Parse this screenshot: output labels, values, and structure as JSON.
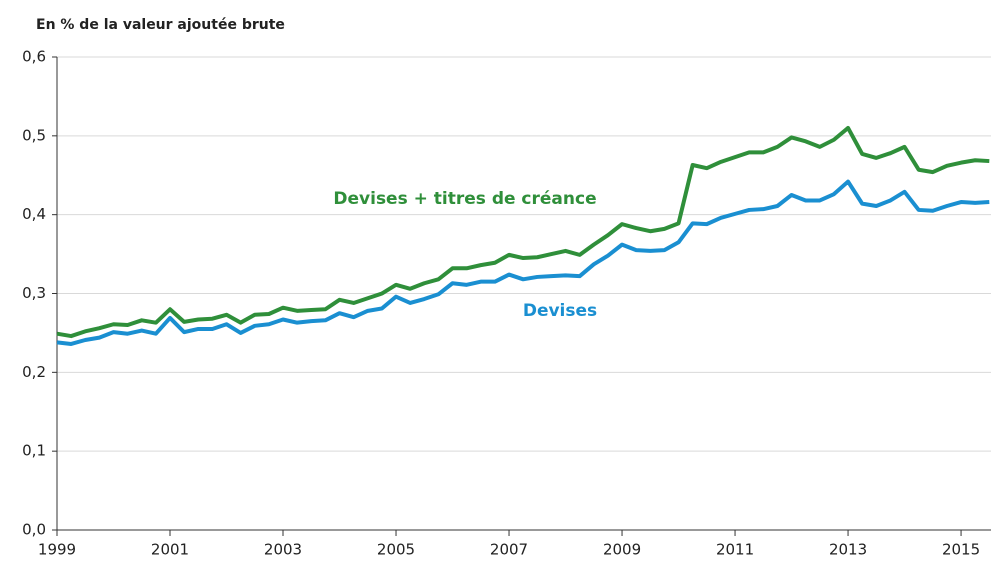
{
  "chart_data": {
    "type": "line",
    "y_label": "En % de la valeur ajoutée brute",
    "x": [
      1999,
      1999.25,
      1999.5,
      1999.75,
      2000,
      2000.25,
      2000.5,
      2000.75,
      2001,
      2001.25,
      2001.5,
      2001.75,
      2002,
      2002.25,
      2002.5,
      2002.75,
      2003,
      2003.25,
      2003.5,
      2003.75,
      2004,
      2004.25,
      2004.5,
      2004.75,
      2005,
      2005.25,
      2005.5,
      2005.75,
      2006,
      2006.25,
      2006.5,
      2006.75,
      2007,
      2007.25,
      2007.5,
      2007.75,
      2008,
      2008.25,
      2008.5,
      2008.75,
      2009,
      2009.25,
      2009.5,
      2009.75,
      2010,
      2010.25,
      2010.5,
      2010.75,
      2011,
      2011.25,
      2011.5,
      2011.75,
      2012,
      2012.25,
      2012.5,
      2012.75,
      2013,
      2013.25,
      2013.5,
      2013.75,
      2014,
      2014.25,
      2014.5,
      2014.75,
      2015,
      2015.25,
      2015.5
    ],
    "series": [
      {
        "name": "Devises + titres de créance",
        "color": "#2f8f3a",
        "values": [
          0.249,
          0.246,
          0.252,
          0.256,
          0.261,
          0.26,
          0.266,
          0.263,
          0.28,
          0.264,
          0.267,
          0.268,
          0.273,
          0.263,
          0.273,
          0.274,
          0.282,
          0.278,
          0.279,
          0.28,
          0.292,
          0.288,
          0.294,
          0.3,
          0.311,
          0.306,
          0.313,
          0.318,
          0.332,
          0.332,
          0.336,
          0.339,
          0.349,
          0.345,
          0.346,
          0.35,
          0.354,
          0.349,
          0.362,
          0.374,
          0.388,
          0.383,
          0.379,
          0.382,
          0.389,
          0.463,
          0.459,
          0.467,
          0.473,
          0.479,
          0.479,
          0.486,
          0.498,
          0.493,
          0.486,
          0.495,
          0.51,
          0.477,
          0.472,
          0.478,
          0.486,
          0.457,
          0.454,
          0.462,
          0.466,
          0.469,
          0.468
        ]
      },
      {
        "name": "Devises",
        "color": "#1a8fd1",
        "values": [
          0.238,
          0.236,
          0.241,
          0.244,
          0.251,
          0.249,
          0.253,
          0.249,
          0.269,
          0.251,
          0.255,
          0.255,
          0.261,
          0.25,
          0.259,
          0.261,
          0.267,
          0.263,
          0.265,
          0.266,
          0.275,
          0.27,
          0.278,
          0.281,
          0.296,
          0.288,
          0.293,
          0.299,
          0.313,
          0.311,
          0.315,
          0.315,
          0.324,
          0.318,
          0.321,
          0.322,
          0.323,
          0.322,
          0.337,
          0.348,
          0.362,
          0.355,
          0.354,
          0.355,
          0.365,
          0.389,
          0.388,
          0.396,
          0.401,
          0.406,
          0.407,
          0.411,
          0.425,
          0.418,
          0.418,
          0.426,
          0.442,
          0.414,
          0.411,
          0.418,
          0.429,
          0.406,
          0.405,
          0.411,
          0.416,
          0.415,
          0.416
        ]
      }
    ],
    "xlim": [
      1999,
      2015.53
    ],
    "xticks": [
      1999,
      2001,
      2003,
      2005,
      2007,
      2009,
      2011,
      2013,
      2015
    ],
    "ylim": [
      0,
      0.6
    ],
    "yticks": [
      {
        "value": 0,
        "label": "0,0"
      },
      {
        "value": 0.1,
        "label": "0,1"
      },
      {
        "value": 0.2,
        "label": "0,2"
      },
      {
        "value": 0.3,
        "label": "0,3"
      },
      {
        "value": 0.4,
        "label": "0,4"
      },
      {
        "value": 0.5,
        "label": "0,5"
      },
      {
        "value": 0.6,
        "label": "0,6"
      }
    ],
    "grid": true
  }
}
